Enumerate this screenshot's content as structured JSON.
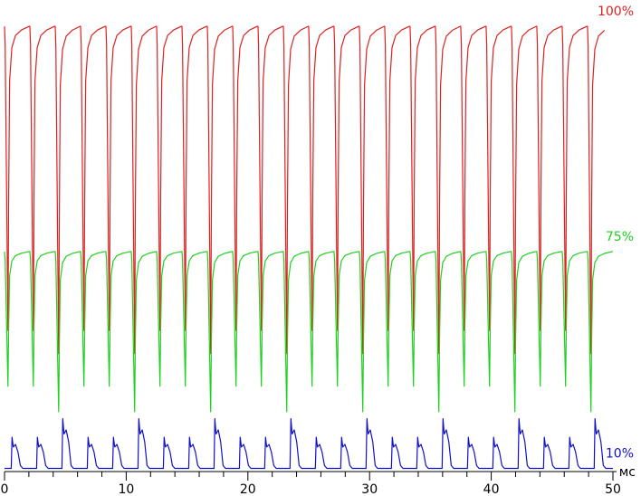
{
  "chart_data": {
    "type": "line",
    "title": "",
    "xlabel": "мс",
    "ylabel": "",
    "xlim": [
      0,
      50
    ],
    "ylim": [
      0,
      100
    ],
    "grid": false,
    "x_ticks": [
      0,
      10,
      20,
      30,
      40,
      50
    ],
    "x_tick_labels": [
      "0",
      "10",
      "20",
      "30",
      "40",
      "50"
    ],
    "series": [
      {
        "name": "100%",
        "color": "#e02020",
        "period_ms": 2.083,
        "start_ms": 0.0,
        "end_ms": 49.6,
        "baseline": 95.5,
        "dip_low": 30.0,
        "dip_low_deep": 25.0,
        "deep_every": 3
      },
      {
        "name": "75%",
        "color": "#20d020",
        "period_ms": 2.083,
        "start_ms": 0.0,
        "end_ms": 50.0,
        "baseline": 47.0,
        "dip_low": 18.0,
        "dip_low_deep": 12.5,
        "deep_every": 3
      },
      {
        "name": "10%",
        "color": "#1010cc",
        "period_ms": 2.083,
        "start_ms": 0.0,
        "end_ms": 50.0,
        "baseline": 0.3,
        "peak": 7.0,
        "peak_high": 11.0,
        "high_every": 3
      }
    ]
  }
}
